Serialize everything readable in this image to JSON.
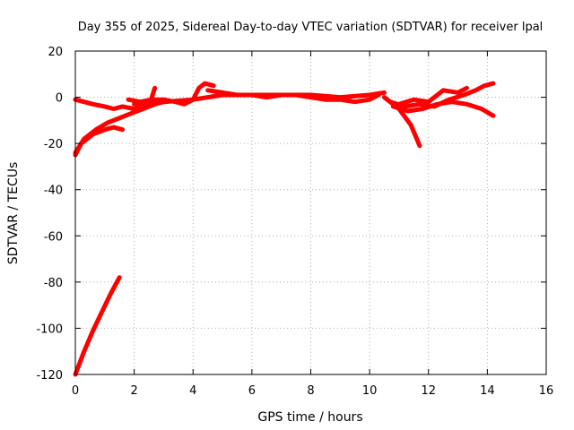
{
  "chart_data": {
    "type": "line",
    "title": "Day 355 of 2025, Sidereal Day-to-day VTEC variation (SDTVAR) for receiver lpal",
    "xlabel": "GPS time / hours",
    "ylabel": "SDTVAR / TECUs",
    "xlim": [
      0,
      16
    ],
    "ylim": [
      -120,
      20
    ],
    "xticks": [
      0,
      2,
      4,
      6,
      8,
      10,
      12,
      14,
      16
    ],
    "yticks": [
      -120,
      -100,
      -80,
      -60,
      -40,
      -20,
      0,
      20
    ],
    "grid": true,
    "series_color": "#ff0000",
    "series": [
      {
        "x": [
          0.0,
          0.3,
          0.6,
          1.0,
          1.3,
          1.6,
          2.0,
          2.4
        ],
        "y": [
          -1,
          -2,
          -3,
          -4,
          -5,
          -4,
          -5,
          -4
        ]
      },
      {
        "x": [
          0.0,
          0.2,
          0.4,
          0.6,
          0.8,
          1.0,
          1.3,
          1.6
        ],
        "y": [
          -25,
          -20,
          -18,
          -16,
          -15,
          -14,
          -13,
          -14
        ]
      },
      {
        "x": [
          0.0,
          0.3,
          0.7,
          1.1,
          1.5,
          1.9,
          2.3,
          2.7,
          3.0
        ],
        "y": [
          -24,
          -18,
          -14,
          -11,
          -9,
          -7,
          -5,
          -3,
          -2
        ]
      },
      {
        "x": [
          1.8,
          2.2,
          2.6,
          3.0,
          3.4,
          3.7,
          4.0,
          4.2,
          4.4,
          4.7
        ],
        "y": [
          -1,
          -2,
          -1,
          -1,
          -2,
          -3,
          -1,
          4,
          6,
          5
        ]
      },
      {
        "x": [
          2.5,
          2.7
        ],
        "y": [
          -4,
          4
        ]
      },
      {
        "x": [
          2.0,
          3.0,
          4.0,
          5.0,
          6.0,
          7.0,
          8.0,
          9.0,
          10.0,
          10.5
        ],
        "y": [
          -3,
          -2,
          -1,
          1,
          1,
          1,
          1,
          0,
          1,
          2
        ]
      },
      {
        "x": [
          4.5,
          5.0,
          5.5,
          6.0,
          6.5,
          7.0,
          7.5,
          8.0,
          8.5,
          9.0,
          9.5,
          10.0,
          10.3
        ],
        "y": [
          3,
          2,
          1,
          1,
          0,
          1,
          1,
          0,
          -1,
          -1,
          -2,
          -1,
          1
        ]
      },
      {
        "x": [
          10.5,
          11.0,
          11.4,
          11.7
        ],
        "y": [
          0,
          -5,
          -12,
          -21
        ]
      },
      {
        "x": [
          10.7,
          11.2,
          11.7,
          12.2,
          12.7,
          13.2,
          13.6,
          13.9,
          14.2
        ],
        "y": [
          -2,
          -4,
          -3,
          -4,
          -1,
          1,
          3,
          5,
          6
        ]
      },
      {
        "x": [
          10.8,
          11.3,
          11.8,
          12.3,
          12.8,
          13.3,
          13.8,
          14.2
        ],
        "y": [
          -4,
          -6,
          -5,
          -3,
          -2,
          -3,
          -5,
          -8
        ]
      },
      {
        "x": [
          11.0,
          11.5,
          12.0,
          12.5,
          13.0,
          13.3
        ],
        "y": [
          -3,
          -1,
          -2,
          3,
          2,
          4
        ]
      },
      {
        "x": [
          0.0,
          0.3,
          0.6,
          0.9,
          1.2,
          1.5
        ],
        "y": [
          -120,
          -110,
          -101,
          -93,
          -85,
          -78
        ]
      }
    ]
  }
}
